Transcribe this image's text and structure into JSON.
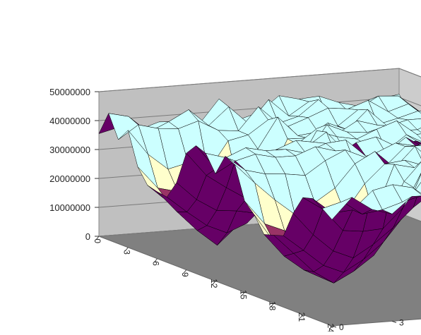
{
  "chart_data": {
    "type": "surface",
    "title": "",
    "xlabel": "",
    "ylabel": "",
    "zlabel": "",
    "x_ticks": [
      "0",
      "3",
      "6",
      "9",
      "12",
      "15",
      "18",
      "21",
      "24"
    ],
    "y_ticks": [
      "0",
      "3",
      "6",
      "9",
      "12",
      "15"
    ],
    "z_ticks": [
      "0",
      "10000000",
      "20000000",
      "30000000",
      "40000000",
      "50000000"
    ],
    "x_range": [
      0,
      24
    ],
    "y_range": [
      0,
      15
    ],
    "zlim": [
      0,
      50000000
    ],
    "color_bands": [
      {
        "from": 0,
        "to": 10000000,
        "color": "#9999ff"
      },
      {
        "from": 10000000,
        "to": 20000000,
        "color": "#993366"
      },
      {
        "from": 20000000,
        "to": 30000000,
        "color": "#ffffcc"
      },
      {
        "from": 30000000,
        "to": 40000000,
        "color": "#ccffff"
      },
      {
        "from": 40000000,
        "to": 50000000,
        "color": "#ccffff"
      }
    ],
    "underside_color": "#660066",
    "floor_color": "#808080",
    "wall_color": "#c0c0c0",
    "grid": true,
    "legend": "none",
    "description_values": {
      "plateau_level_approx": 40000000,
      "low_regions": [
        {
          "x_from": 3,
          "x_to": 9,
          "y_from": 0,
          "y_to": 6,
          "min_z": 3000000
        },
        {
          "x_from": 14,
          "x_to": 21,
          "y_from": 0,
          "y_to": 6,
          "min_z": 3000000
        }
      ]
    }
  }
}
